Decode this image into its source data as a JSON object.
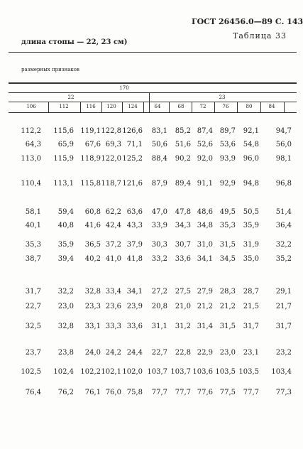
{
  "header": {
    "standard": "ГОСТ 26456.0—89 С. 143",
    "table_label": "Таблица 33",
    "subtitle": "длина стопы — 22, 23 см)",
    "caption": "размерных признаков"
  },
  "table": {
    "group_header": "170",
    "subgroups": [
      "22",
      "23"
    ],
    "columns": [
      "106",
      "112",
      "116",
      "120",
      "124",
      "64",
      "68",
      "72",
      "76",
      "80",
      "84"
    ],
    "rows": [
      [
        "112,2",
        "115,6",
        "119,1",
        "122,8",
        "126,6",
        "83,1",
        "85,2",
        "87,4",
        "89,7",
        "92,1",
        "94,7"
      ],
      [
        "64,3",
        "65,9",
        "67,6",
        "69,3",
        "71,1",
        "50,6",
        "51,6",
        "52,6",
        "53,6",
        "54,8",
        "56,0"
      ],
      [
        "113,0",
        "115,9",
        "118,9",
        "122,0",
        "125,2",
        "88,4",
        "90,2",
        "92,0",
        "93,9",
        "96,0",
        "98,1"
      ],
      [
        "110,4",
        "113,1",
        "115,8",
        "118,7",
        "121,6",
        "87,9",
        "89,4",
        "91,1",
        "92,9",
        "94,8",
        "96,8"
      ],
      [
        "58,1",
        "59,4",
        "60,8",
        "62,2",
        "63,6",
        "47,0",
        "47,8",
        "48,6",
        "49,5",
        "50,5",
        "51,4"
      ],
      [
        "40,1",
        "40,8",
        "41,6",
        "42,4",
        "43,3",
        "33,9",
        "34,3",
        "34,8",
        "35,3",
        "35,9",
        "36,4"
      ],
      [
        "35,3",
        "35,9",
        "36,5",
        "37,2",
        "37,9",
        "30,3",
        "30,7",
        "31,0",
        "31,5",
        "31,9",
        "32,2"
      ],
      [
        "38,7",
        "39,4",
        "40,2",
        "41,0",
        "41,8",
        "33,2",
        "33,6",
        "34,1",
        "34,5",
        "35,0",
        "35,2"
      ],
      [
        "31,7",
        "32,2",
        "32,8",
        "33,4",
        "34,1",
        "27,2",
        "27,5",
        "27,9",
        "28,3",
        "28,7",
        "29,1"
      ],
      [
        "22,7",
        "23,0",
        "23,3",
        "23,6",
        "23,9",
        "20,8",
        "21,0",
        "21,2",
        "21,2",
        "21,5",
        "21,7"
      ],
      [
        "32,5",
        "32,8",
        "33,1",
        "33,3",
        "33,6",
        "31,1",
        "31,2",
        "31,4",
        "31,5",
        "31,7",
        "31,7"
      ],
      [
        "23,7",
        "23,8",
        "24,0",
        "24,2",
        "24,4",
        "22,7",
        "22,8",
        "22,9",
        "23,0",
        "23,1",
        "23,2"
      ],
      [
        "102,5",
        "102,4",
        "102,2",
        "102,1",
        "102,0",
        "103,7",
        "103,7",
        "103,6",
        "103,5",
        "103,5",
        "103,4"
      ],
      [
        "76,4",
        "76,2",
        "76,1",
        "76,0",
        "75,8",
        "77,7",
        "77,7",
        "77,6",
        "77,5",
        "77,7",
        "77,3"
      ]
    ]
  }
}
